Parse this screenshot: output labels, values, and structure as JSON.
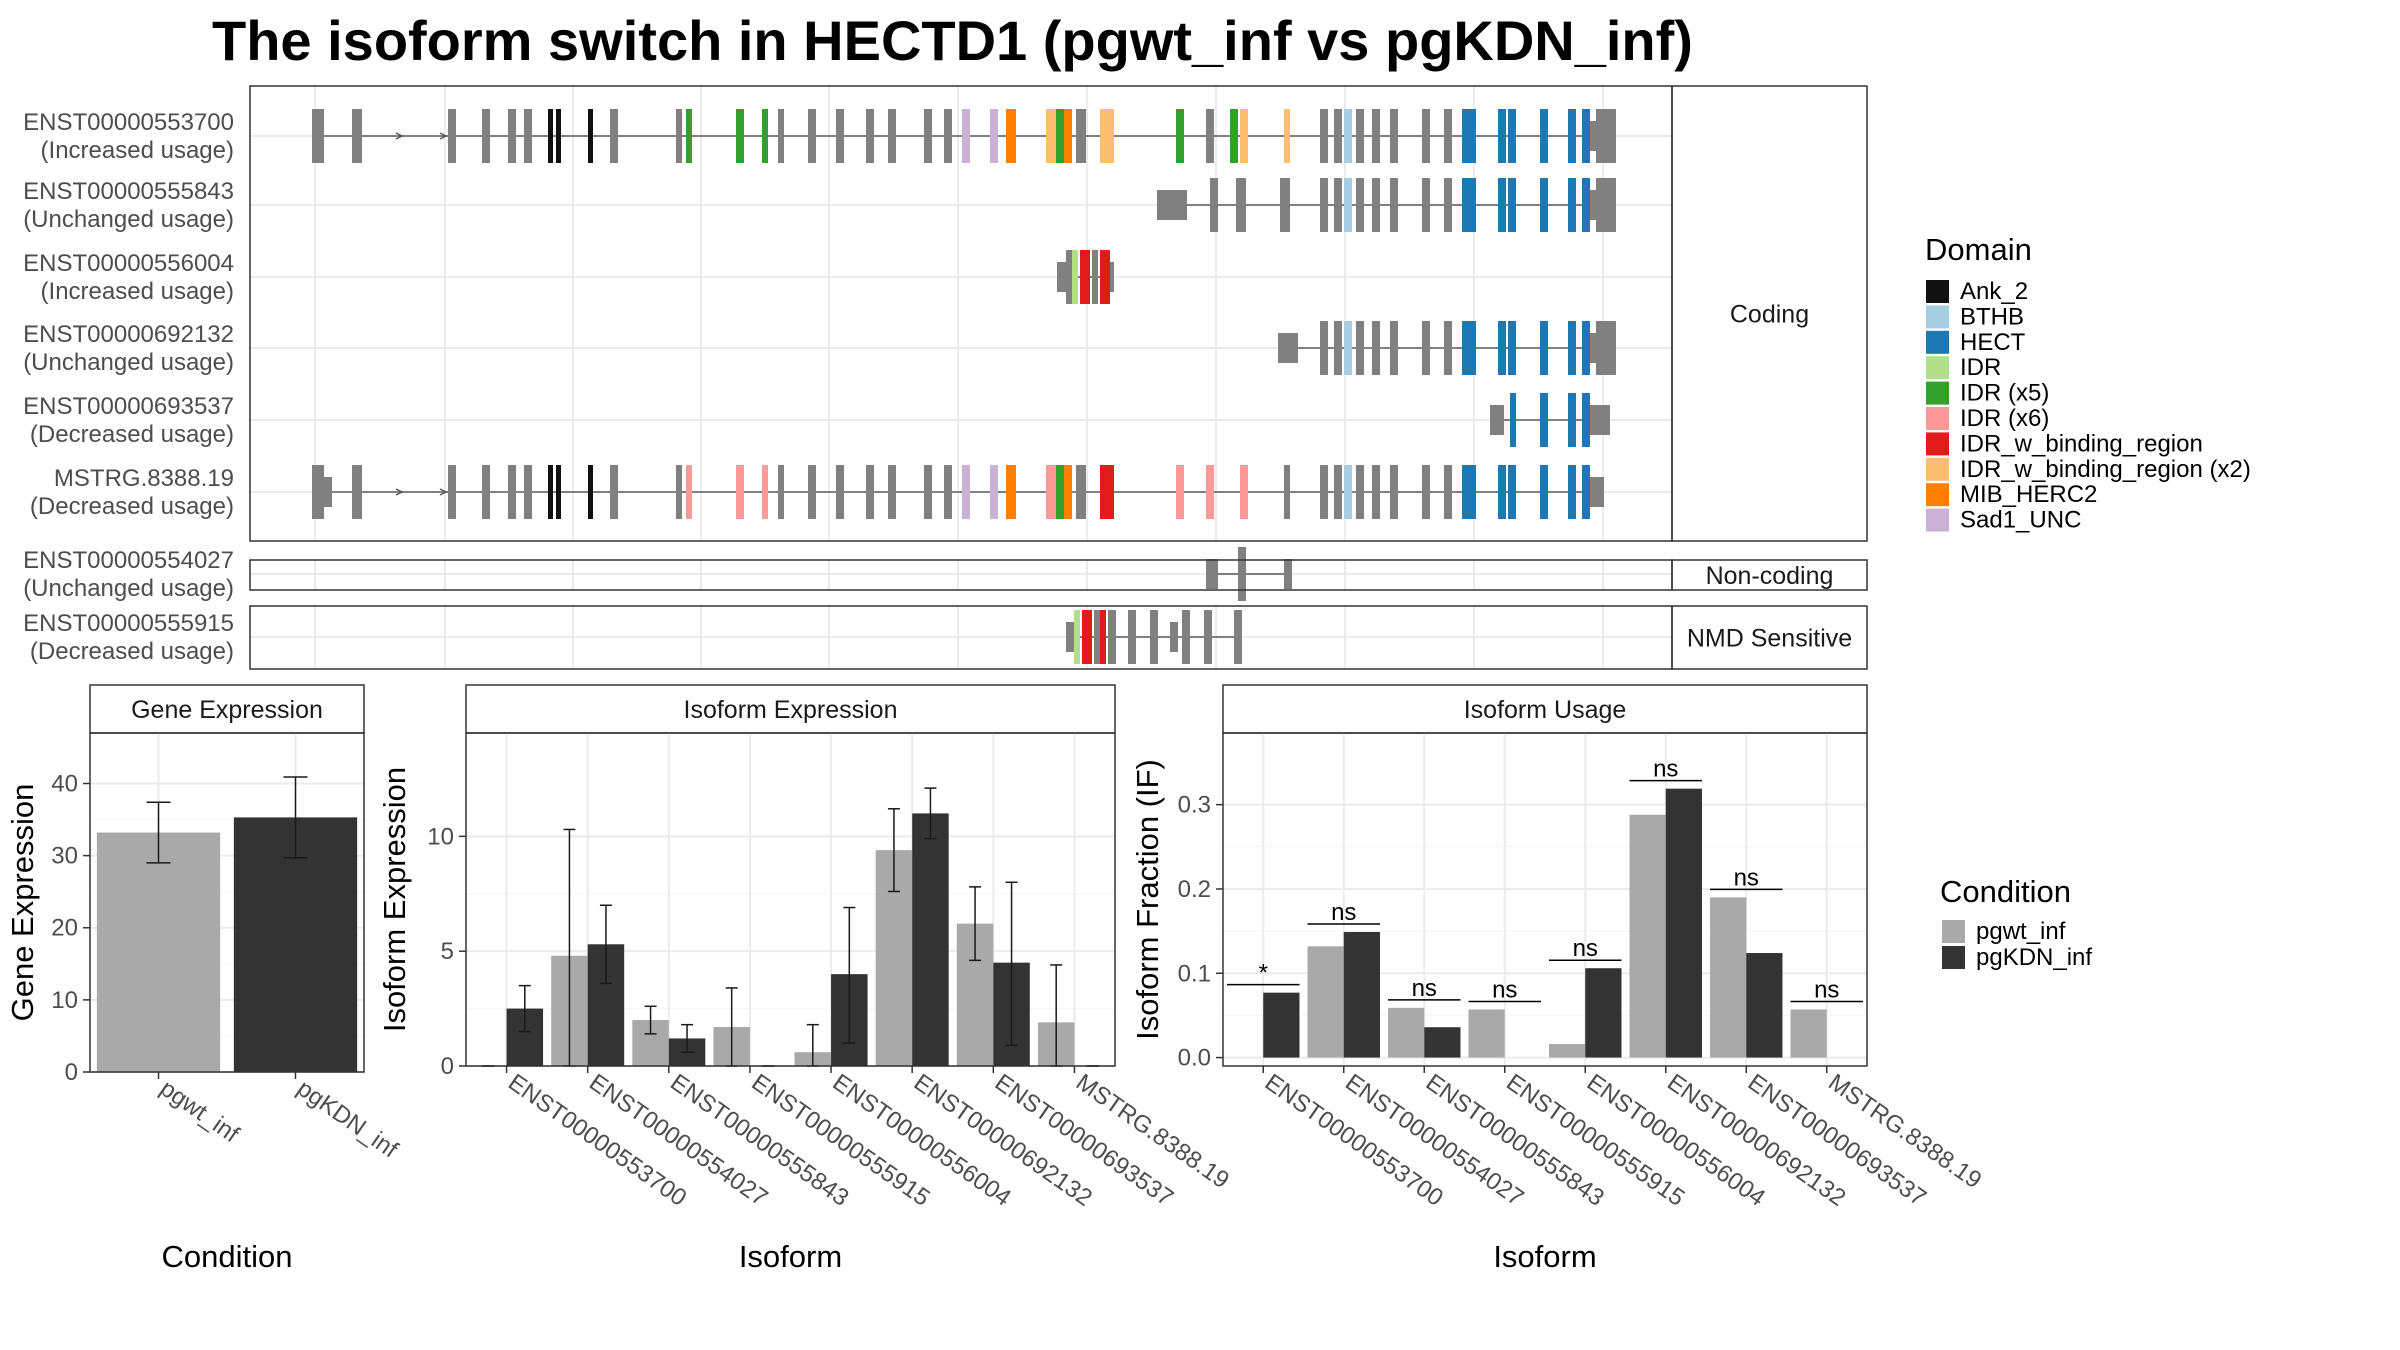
{
  "title": "The isoform switch in HECTD1 (pgwt_inf vs pgKDN_inf)",
  "colors": {
    "pgwt_inf": "#a9a9a9",
    "pgKDN_inf": "#333333",
    "exon": "#808080",
    "panel_border": "#333333",
    "strip_bg": "#ffffff",
    "grid": "#ebebeb"
  },
  "structure": {
    "facets": [
      {
        "label": "Coding",
        "isoforms": [
          {
            "id": "ENST00000553700",
            "usage": "(Increased usage)"
          },
          {
            "id": "ENST00000555843",
            "usage": "(Unchanged usage)"
          },
          {
            "id": "ENST00000556004",
            "usage": "(Increased usage)"
          },
          {
            "id": "ENST00000692132",
            "usage": "(Unchanged usage)"
          },
          {
            "id": "ENST00000693537",
            "usage": "(Decreased usage)"
          },
          {
            "id": "MSTRG.8388.19",
            "usage": "(Decreased usage)"
          }
        ]
      },
      {
        "label": "Non-coding",
        "isoforms": [
          {
            "id": "ENST00000554027",
            "usage": "(Unchanged usage)"
          }
        ]
      },
      {
        "label": "NMD Sensitive",
        "isoforms": [
          {
            "id": "ENST00000555915",
            "usage": "(Decreased usage)"
          }
        ]
      }
    ],
    "legend": {
      "title": "Domain",
      "items": [
        {
          "label": "Ank_2",
          "color": "#111111"
        },
        {
          "label": "BTHB",
          "color": "#a6cee3"
        },
        {
          "label": "HECT",
          "color": "#1f78b4"
        },
        {
          "label": "IDR",
          "color": "#b2df8a"
        },
        {
          "label": "IDR (x5)",
          "color": "#33a02c"
        },
        {
          "label": "IDR (x6)",
          "color": "#fb9a99"
        },
        {
          "label": "IDR_w_binding_region",
          "color": "#e31a1c"
        },
        {
          "label": "IDR_w_binding_region (x2)",
          "color": "#fdbf6f"
        },
        {
          "label": "MIB_HERC2",
          "color": "#ff7f00"
        },
        {
          "label": "Sad1_UNC",
          "color": "#cab2d6"
        }
      ]
    }
  },
  "condition_legend": {
    "title": "Condition",
    "items": [
      {
        "label": "pgwt_inf",
        "color": "#a9a9a9"
      },
      {
        "label": "pgKDN_inf",
        "color": "#333333"
      }
    ]
  },
  "chart_data": [
    {
      "type": "bar",
      "strip": "Gene Expression",
      "xlabel": "Condition",
      "ylabel": "Gene Expression",
      "categories": [
        "pgwt_inf",
        "pgKDN_inf"
      ],
      "values": [
        33.2,
        35.3
      ],
      "error_low": [
        29.0,
        29.7
      ],
      "error_high": [
        37.4,
        40.9
      ],
      "ylim": [
        0,
        47
      ],
      "yticks": [
        0,
        10,
        20,
        30,
        40
      ],
      "grid": true
    },
    {
      "type": "bar",
      "strip": "Isoform Expression",
      "xlabel": "Isoform",
      "ylabel": "Isoform Expression",
      "categories": [
        "ENST00000553700",
        "ENST00000554027",
        "ENST00000555843",
        "ENST00000555915",
        "ENST00000556004",
        "ENST00000692132",
        "ENST00000693537",
        "MSTRG.8388.19"
      ],
      "series": [
        {
          "name": "pgwt_inf",
          "values": [
            0.0,
            4.8,
            2.0,
            1.7,
            0.6,
            9.4,
            6.2,
            1.9
          ],
          "error_low": [
            0.0,
            0.0,
            1.4,
            0.0,
            0.0,
            7.6,
            4.6,
            0.0
          ],
          "error_high": [
            0.0,
            10.3,
            2.6,
            3.4,
            1.8,
            11.2,
            7.8,
            4.4
          ]
        },
        {
          "name": "pgKDN_inf",
          "values": [
            2.5,
            5.3,
            1.2,
            0.0,
            4.0,
            11.0,
            4.5,
            0.0
          ],
          "error_low": [
            1.5,
            3.6,
            0.6,
            0.0,
            1.0,
            9.9,
            0.9,
            0.0
          ],
          "error_high": [
            3.5,
            7.0,
            1.8,
            0.0,
            6.9,
            12.1,
            8.0,
            0.0
          ]
        }
      ],
      "ylim": [
        0,
        14.5
      ],
      "yticks": [
        0,
        5,
        10
      ],
      "grid": true
    },
    {
      "type": "bar",
      "strip": "Isoform Usage",
      "xlabel": "Isoform",
      "ylabel": "Isoform Fraction (IF)",
      "categories": [
        "ENST00000553700",
        "ENST00000554027",
        "ENST00000555843",
        "ENST00000555915",
        "ENST00000556004",
        "ENST00000692132",
        "ENST00000693537",
        "MSTRG.8388.19"
      ],
      "series": [
        {
          "name": "pgwt_inf",
          "values": [
            0.0,
            0.132,
            0.059,
            0.057,
            0.016,
            0.288,
            0.19,
            0.057
          ]
        },
        {
          "name": "pgKDN_inf",
          "values": [
            0.077,
            0.149,
            0.036,
            0.0,
            0.106,
            0.319,
            0.124,
            0.0
          ]
        }
      ],
      "significance": [
        "*",
        "ns",
        "ns",
        "ns",
        "ns",
        "ns",
        "ns",
        "ns"
      ],
      "ylim": [
        -0.01,
        0.385
      ],
      "yticks": [
        0.0,
        0.1,
        0.2,
        0.3
      ],
      "ytick_labels": [
        "0.0",
        "0.1",
        "0.2",
        "0.3"
      ],
      "grid": true
    }
  ]
}
